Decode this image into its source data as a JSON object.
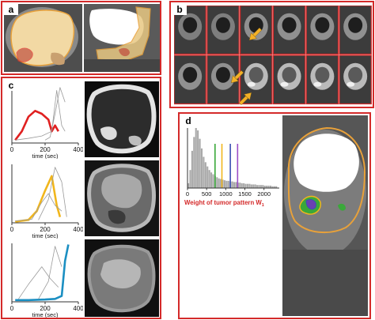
{
  "figure": {
    "panels": {
      "a": {
        "label": "a"
      },
      "b": {
        "label": "b"
      },
      "c": {
        "label": "c"
      },
      "d": {
        "label": "d"
      }
    }
  },
  "colors": {
    "panel_border": "#d42a2a",
    "tumor_outline": "#e8a13a",
    "red_curve": "#e02020",
    "yellow_curve": "#f1b61c",
    "teal_curve": "#1b8fc2",
    "arrow": "#f3b127",
    "green_line": "#3aa83a",
    "purple_line": "#6a3fb3"
  },
  "chart_data": [
    {
      "id": "c-top",
      "type": "line",
      "xlabel": "time (sec)",
      "x_ticks": [
        "0",
        "200",
        "400"
      ],
      "xlim": [
        0,
        400
      ],
      "series": [
        {
          "color": "#e02020",
          "x": [
            20,
            60,
            100,
            140,
            180,
            220,
            240,
            260,
            280
          ],
          "y": [
            0.05,
            0.2,
            0.45,
            0.55,
            0.5,
            0.4,
            0.2,
            0.3,
            0.2
          ]
        },
        {
          "color": "#9a9a9a",
          "x": [
            20,
            100,
            180,
            240,
            270,
            300,
            320
          ],
          "y": [
            0.05,
            0.08,
            0.12,
            0.2,
            0.9,
            0.3,
            0.2
          ]
        },
        {
          "color": "#9a9a9a",
          "x": [
            200,
            230,
            260,
            290,
            320
          ],
          "y": [
            0.05,
            0.1,
            0.5,
            0.95,
            0.7
          ]
        }
      ]
    },
    {
      "id": "c-middle",
      "type": "line",
      "xlabel": "time (sec)",
      "x_ticks": [
        "0",
        "200",
        "400"
      ],
      "xlim": [
        0,
        400
      ],
      "series": [
        {
          "color": "#f1b61c",
          "x": [
            20,
            100,
            150,
            200,
            240,
            270,
            290
          ],
          "y": [
            0.02,
            0.05,
            0.2,
            0.55,
            0.8,
            0.3,
            0.1
          ]
        },
        {
          "color": "#9a9a9a",
          "x": [
            20,
            120,
            180,
            220,
            260,
            300
          ],
          "y": [
            0.03,
            0.06,
            0.35,
            0.5,
            0.3,
            0.2
          ]
        },
        {
          "color": "#9a9a9a",
          "x": [
            160,
            220,
            260,
            300,
            330
          ],
          "y": [
            0.05,
            0.4,
            0.95,
            0.7,
            0.1
          ]
        }
      ]
    },
    {
      "id": "c-bottom",
      "type": "line",
      "xlabel": "time (sec)",
      "x_ticks": [
        "0",
        "200",
        "400"
      ],
      "xlim": [
        0,
        400
      ],
      "series": [
        {
          "color": "#1b8fc2",
          "x": [
            20,
            100,
            200,
            260,
            300,
            320,
            340
          ],
          "y": [
            0.03,
            0.03,
            0.04,
            0.05,
            0.1,
            0.7,
            0.98
          ]
        },
        {
          "color": "#9a9a9a",
          "x": [
            40,
            100,
            140,
            180,
            230,
            280
          ],
          "y": [
            0.05,
            0.3,
            0.45,
            0.6,
            0.4,
            0.25
          ]
        },
        {
          "color": "#9a9a9a",
          "x": [
            160,
            220,
            260,
            300
          ],
          "y": [
            0.05,
            0.35,
            0.95,
            0.6
          ]
        }
      ]
    },
    {
      "id": "d-histogram",
      "type": "bar",
      "xlabel": "Weight of tumor pattern W",
      "xlabel_subscript": "1",
      "x_ticks": [
        "0",
        "500",
        "1000",
        "1500",
        "2000"
      ],
      "xlim": [
        0,
        2400
      ],
      "bin_width": 50,
      "bins": [
        0,
        50,
        100,
        150,
        200,
        250,
        300,
        350,
        400,
        450,
        500,
        550,
        600,
        650,
        700,
        750,
        800,
        850,
        900,
        950,
        1000,
        1050,
        1100,
        1150,
        1200,
        1250,
        1300,
        1350,
        1400,
        1450,
        1500,
        1550,
        1600,
        1650,
        1700,
        1750,
        1800,
        1850,
        1900,
        1950,
        2000,
        2050,
        2100,
        2150,
        2200,
        2250,
        2300
      ],
      "counts": [
        8,
        30,
        62,
        85,
        100,
        96,
        82,
        66,
        52,
        43,
        36,
        30,
        26,
        23,
        20,
        18,
        16,
        15,
        14,
        13,
        12,
        12,
        11,
        11,
        10,
        10,
        9,
        9,
        8,
        8,
        7,
        7,
        7,
        6,
        6,
        6,
        5,
        5,
        5,
        5,
        4,
        4,
        4,
        4,
        3,
        3,
        3
      ],
      "thresholds": [
        {
          "value": 720,
          "color": "#3aa83a"
        },
        {
          "value": 900,
          "color": "#f1b61c"
        },
        {
          "value": 1120,
          "color": "#3b4fb3"
        },
        {
          "value": 1310,
          "color": "#9b4fc6"
        }
      ]
    }
  ]
}
